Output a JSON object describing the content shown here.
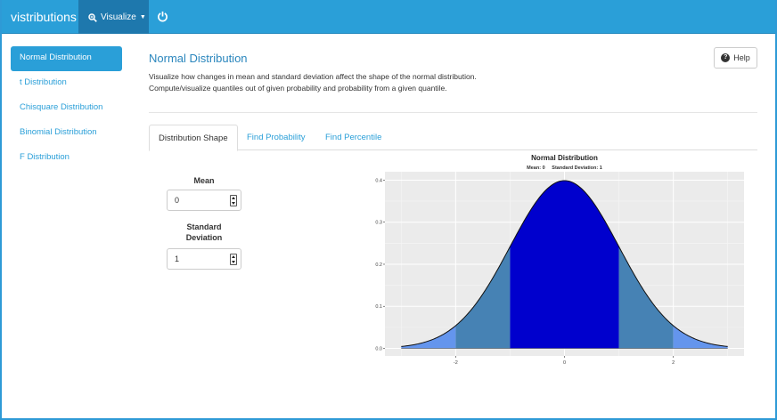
{
  "navbar": {
    "brand": "vistributions",
    "visualize_label": "Visualize",
    "power_icon": "power-icon"
  },
  "sidebar": {
    "items": [
      {
        "label": "Normal Distribution",
        "active": true
      },
      {
        "label": "t Distribution",
        "active": false
      },
      {
        "label": "Chisquare Distribution",
        "active": false
      },
      {
        "label": "Binomial Distribution",
        "active": false
      },
      {
        "label": "F Distribution",
        "active": false
      }
    ]
  },
  "main": {
    "title": "Normal Distribution",
    "desc_line1": "Visualize how changes in mean and standard deviation affect the shape of the normal distribution.",
    "desc_line2": "Compute/visualize quantiles out of given probability and probability from a given quantile.",
    "help_label": "Help",
    "tabs": [
      {
        "label": "Distribution Shape",
        "active": true
      },
      {
        "label": "Find Probability",
        "active": false
      },
      {
        "label": "Find Percentile",
        "active": false
      }
    ],
    "mean_label": "Mean",
    "mean_value": "0",
    "sd_label_1": "Standard",
    "sd_label_2": "Deviation",
    "sd_value": "1"
  },
  "chart_data": {
    "type": "area",
    "title": "Normal Distribution",
    "subtitle": "Mean: 0     Standard Deviation: 1",
    "xlabel": "",
    "ylabel": "",
    "xlim": [
      -3,
      3
    ],
    "ylim": [
      0,
      0.4
    ],
    "x_ticks": [
      -2,
      0,
      2
    ],
    "x_tick_labels": [
      "-2",
      "0",
      "2"
    ],
    "y_ticks": [
      0,
      0.1,
      0.2,
      0.3,
      0.4
    ],
    "y_tick_labels": [
      "0.0",
      "0.1",
      "0.2",
      "0.3",
      "0.4"
    ],
    "mean": 0,
    "sd": 1,
    "regions": [
      {
        "from": -3,
        "to": -2,
        "color": "#6495ed"
      },
      {
        "from": -2,
        "to": -1,
        "color": "#4682b4"
      },
      {
        "from": -1,
        "to": 1,
        "color": "#0000cd"
      },
      {
        "from": 1,
        "to": 2,
        "color": "#4682b4"
      },
      {
        "from": 2,
        "to": 3,
        "color": "#6495ed"
      }
    ],
    "grid": true,
    "background": "#ebebeb"
  }
}
